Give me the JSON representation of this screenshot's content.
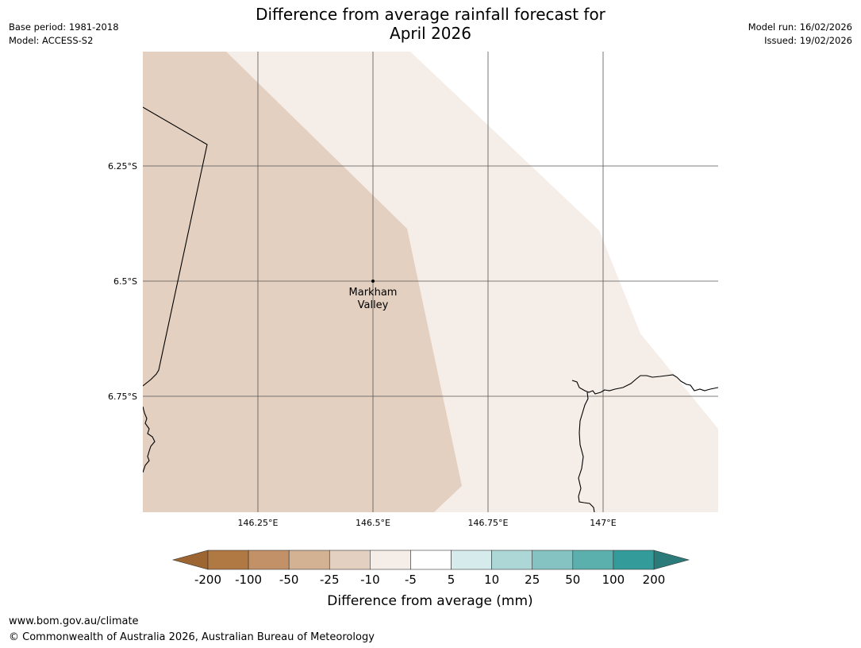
{
  "header": {
    "title_line1": "Difference from average rainfall forecast for",
    "title_line2": "April 2026",
    "base_period": "Base period: 1981-2018",
    "model": "Model: ACCESS-S2",
    "model_run": "Model run: 16/02/2026",
    "issued": "Issued: 19/02/2026"
  },
  "map": {
    "lat_labels": [
      "6.25°S",
      "6.5°S",
      "6.75°S"
    ],
    "lon_labels": [
      "146.25°E",
      "146.5°E",
      "146.75°E",
      "147°E"
    ],
    "place": {
      "line1": "Markham",
      "line2": "Valley"
    },
    "regions": [
      {
        "category": "-25 to -10",
        "color": "#e3d0c0"
      },
      {
        "category": "-10 to -5",
        "color": "#f5ede7"
      }
    ]
  },
  "colorbar": {
    "ticks": [
      "-200",
      "-100",
      "-50",
      "-25",
      "-10",
      "-5",
      "5",
      "10",
      "25",
      "50",
      "100",
      "200"
    ],
    "colors": [
      "#b07843",
      "#c29167",
      "#d3b193",
      "#e3d0c0",
      "#f5ede7",
      "#ffffff",
      "#d6ebeb",
      "#acd7d6",
      "#84c3c1",
      "#5bafad",
      "#339b99"
    ],
    "under_color": "#9c6532",
    "over_color": "#2a7b79",
    "label": "Difference from average (mm)"
  },
  "footer": {
    "url": "www.bom.gov.au/climate",
    "copyright": "© Commonwealth of Australia 2026, Australian Bureau of Meteorology"
  }
}
